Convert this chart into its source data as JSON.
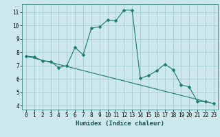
{
  "xlabel": "Humidex (Indice chaleur)",
  "ylabel": "",
  "bg_color": "#cce8ec",
  "grid_color": "#a8cccc",
  "line_color": "#1a7a6e",
  "xlim": [
    -0.5,
    23.5
  ],
  "ylim": [
    3.7,
    11.6
  ],
  "xticks": [
    0,
    1,
    2,
    3,
    4,
    5,
    6,
    7,
    8,
    9,
    10,
    11,
    12,
    13,
    14,
    15,
    16,
    17,
    18,
    19,
    20,
    21,
    22,
    23
  ],
  "yticks": [
    4,
    5,
    6,
    7,
    8,
    9,
    10,
    11
  ],
  "series1_x": [
    0,
    1,
    2,
    3,
    4,
    5,
    6,
    7,
    8,
    9,
    10,
    11,
    12,
    13,
    14,
    15,
    16,
    17,
    18,
    19,
    20,
    21,
    22,
    23
  ],
  "series1_y": [
    7.7,
    7.65,
    7.35,
    7.3,
    6.85,
    7.0,
    8.35,
    7.8,
    9.8,
    9.9,
    10.4,
    10.35,
    11.15,
    11.15,
    6.05,
    6.25,
    6.6,
    7.1,
    6.7,
    5.55,
    5.4,
    4.3,
    4.3,
    4.15
  ],
  "series2_x": [
    0,
    23
  ],
  "series2_y": [
    7.7,
    4.15
  ],
  "marker": "D",
  "marker_size": 2.5,
  "linewidth": 0.8,
  "xlabel_fontsize": 6.5,
  "tick_fontsize": 5.5
}
